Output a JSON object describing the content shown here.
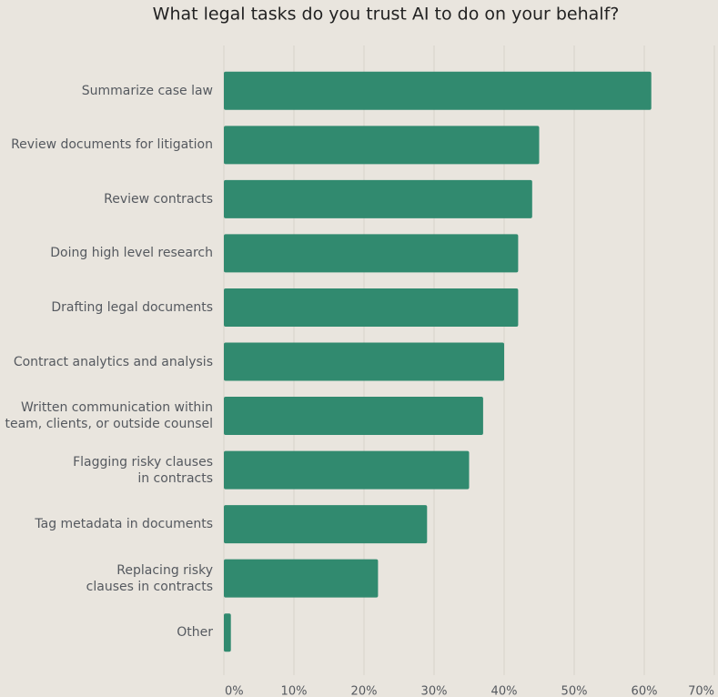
{
  "chart_data": {
    "type": "bar",
    "orientation": "horizontal",
    "title": "What legal tasks do you trust AI to do on your behalf?",
    "categories": [
      "Summarize case law",
      "Review documents for litigation",
      "Review contracts",
      "Doing high level research",
      "Drafting legal documents",
      "Contract analytics and analysis",
      "Written communication within\nteam, clients, or outside counsel",
      "Flagging risky clauses\nin contracts",
      "Tag metadata in documents",
      "Replacing risky\nclauses in contracts",
      "Other"
    ],
    "values": [
      61,
      45,
      44,
      42,
      42,
      40,
      37,
      35,
      29,
      22,
      1
    ],
    "color": "#318a6f",
    "xlim": [
      0,
      70
    ],
    "xticks": [
      {
        "value": 0,
        "label": "0%"
      },
      {
        "value": 10,
        "label": "10%"
      },
      {
        "value": 20,
        "label": "20%"
      },
      {
        "value": 30,
        "label": "30%"
      },
      {
        "value": 40,
        "label": "40%"
      },
      {
        "value": 50,
        "label": "50%"
      },
      {
        "value": 60,
        "label": "60%"
      },
      {
        "value": 70,
        "label": "70%"
      }
    ],
    "grid": true
  }
}
